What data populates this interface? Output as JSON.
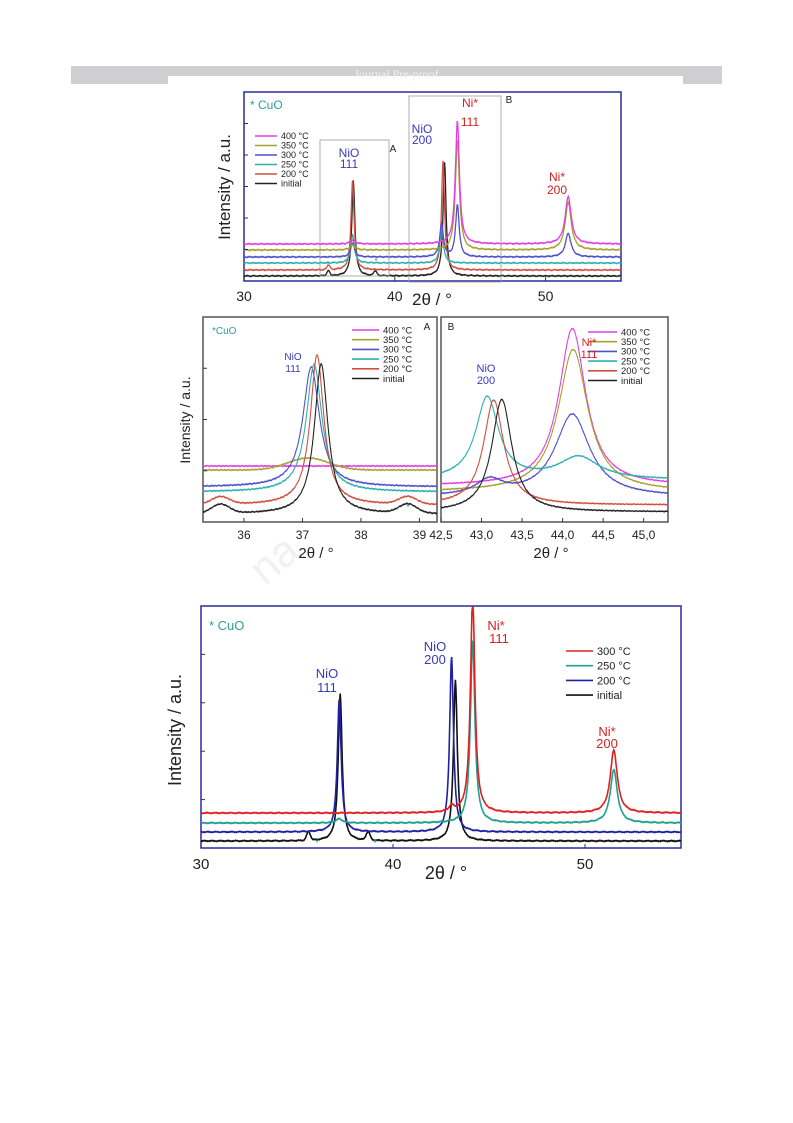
{
  "header": {
    "text": "Journal Pre-proof"
  },
  "watermark": {
    "text": "na"
  },
  "colors": {
    "frame": "#2b2b9a",
    "cuo": "#2aa198",
    "nio_label": "#3a3ab8",
    "ni_label": "#d42020"
  },
  "chart_data": [
    {
      "type": "line",
      "panel": "top",
      "xlabel": "2θ / °",
      "ylabel": "Intensity / a.u.",
      "xlim": [
        30,
        55
      ],
      "xticks": [
        "30",
        "40",
        "50"
      ],
      "legend_position": "top-left",
      "series": [
        {
          "name": "400 °C",
          "color": "#e040e0"
        },
        {
          "name": "350 °C",
          "color": "#a8a030"
        },
        {
          "name": "300 °C",
          "color": "#5050c8"
        },
        {
          "name": "250 °C",
          "color": "#30b0b0"
        },
        {
          "name": "200 °C",
          "color": "#d05040"
        },
        {
          "name": "initial",
          "color": "#222222"
        }
      ],
      "annotations": [
        {
          "text": "* CuO",
          "x": 30.2
        },
        {
          "text": "NiO",
          "x": 37.2
        },
        {
          "text": "111",
          "x": 37.2
        },
        {
          "text": "NiO",
          "x": 42.4
        },
        {
          "text": "200",
          "x": 42.4
        },
        {
          "text": "Ni*",
          "x": 44.8
        },
        {
          "text": "111",
          "x": 44.8
        },
        {
          "text": "Ni*",
          "x": 51.5
        },
        {
          "text": "200",
          "x": 51.5
        },
        {
          "text": "A",
          "x": 39.7
        },
        {
          "text": "B",
          "x": 47.4
        }
      ]
    },
    {
      "type": "line",
      "panel": "A",
      "xlabel": "2θ / °",
      "ylabel": "Intensity / a.u.",
      "xlim": [
        35.3,
        39.3
      ],
      "xticks": [
        "36",
        "37",
        "38",
        "39"
      ],
      "legend_position": "top-right",
      "series": [
        {
          "name": "400 °C",
          "color": "#e040e0"
        },
        {
          "name": "350 °C",
          "color": "#a8a030"
        },
        {
          "name": "300 °C",
          "color": "#5050c8"
        },
        {
          "name": "250 °C",
          "color": "#30b0b0"
        },
        {
          "name": "200 °C",
          "color": "#d05040"
        },
        {
          "name": "initial",
          "color": "#222222"
        }
      ],
      "annotations": [
        {
          "text": "*CuO"
        },
        {
          "text": "NiO"
        },
        {
          "text": "111"
        },
        {
          "text": "A"
        }
      ]
    },
    {
      "type": "line",
      "panel": "B",
      "xlabel": "2θ / °",
      "xlim": [
        42.5,
        45.3
      ],
      "xticks": [
        "42,5",
        "43,0",
        "43,5",
        "44,0",
        "44,5",
        "45,0"
      ],
      "legend_position": "top-right",
      "series": [
        {
          "name": "400 °C",
          "color": "#e040e0"
        },
        {
          "name": "350 °C",
          "color": "#a8a030"
        },
        {
          "name": "300 °C",
          "color": "#5050c8"
        },
        {
          "name": "250 °C",
          "color": "#30b0b0"
        },
        {
          "name": "200 °C",
          "color": "#d05040"
        },
        {
          "name": "initial",
          "color": "#222222"
        }
      ],
      "annotations": [
        {
          "text": "B"
        },
        {
          "text": "NiO"
        },
        {
          "text": "200"
        },
        {
          "text": "Ni*"
        },
        {
          "text": "111"
        }
      ]
    },
    {
      "type": "line",
      "panel": "bottom",
      "xlabel": "2θ / °",
      "ylabel": "Intensity / a.u.",
      "xlim": [
        30,
        55
      ],
      "xticks": [
        "30",
        "40",
        "50"
      ],
      "legend_position": "top-right",
      "series": [
        {
          "name": "300 °C",
          "color": "#e02020"
        },
        {
          "name": "250 °C",
          "color": "#20a090"
        },
        {
          "name": "200 °C",
          "color": "#2020a0"
        },
        {
          "name": "initial",
          "color": "#111111"
        }
      ],
      "annotations": [
        {
          "text": "* CuO"
        },
        {
          "text": "NiO"
        },
        {
          "text": "111"
        },
        {
          "text": "NiO"
        },
        {
          "text": "200"
        },
        {
          "text": "Ni*"
        },
        {
          "text": "111"
        },
        {
          "text": "Ni*"
        },
        {
          "text": "200"
        }
      ]
    }
  ]
}
